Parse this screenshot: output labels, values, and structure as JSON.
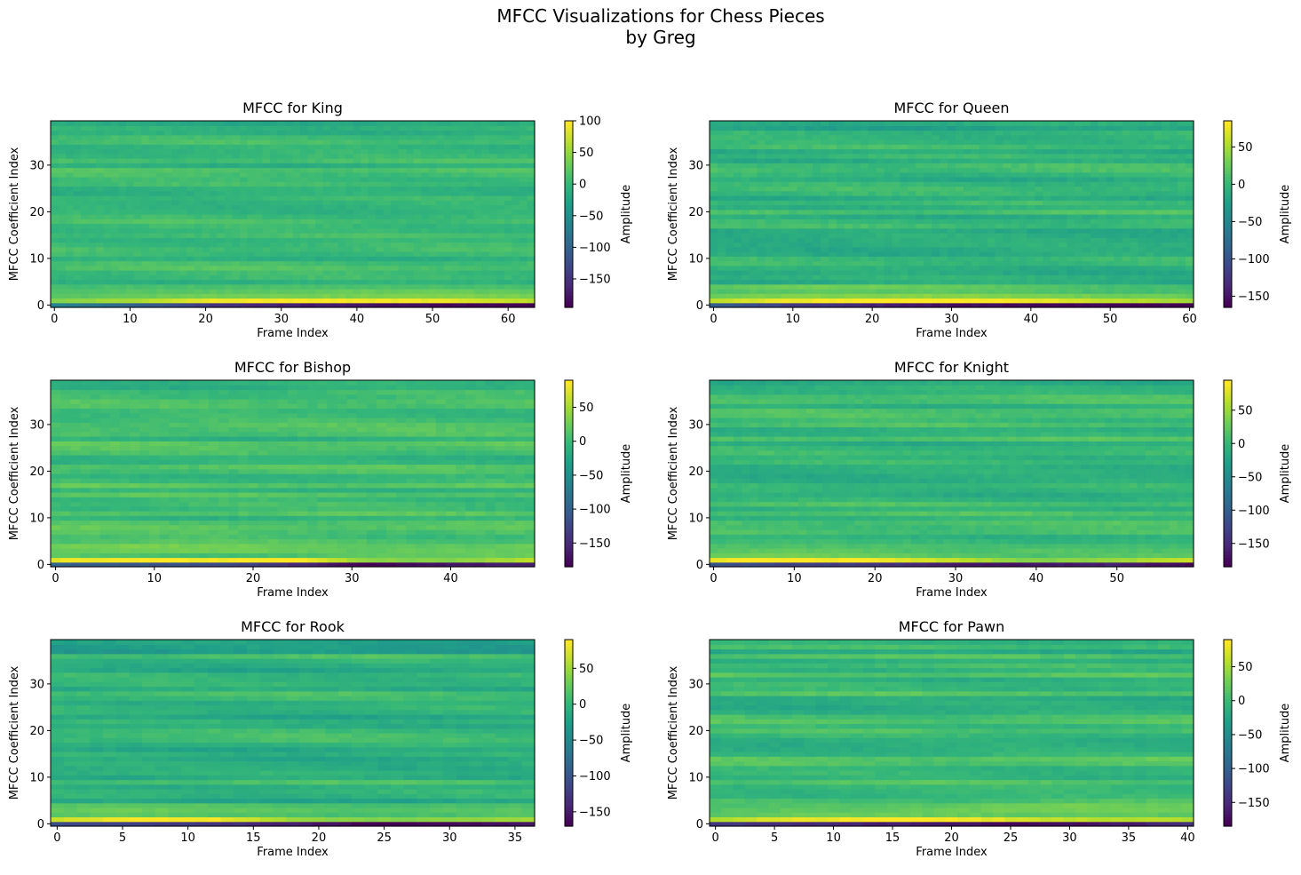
{
  "figure": {
    "suptitle_line1": "MFCC Visualizations for Chess Pieces",
    "suptitle_line2": "by Greg"
  },
  "chart_data": [
    {
      "type": "heatmap",
      "title": "MFCC for King",
      "xlabel": "Frame Index",
      "ylabel": "MFCC Coefficient Index",
      "colorbar_label": "Amplitude",
      "colormap": "viridis",
      "n_frames": 64,
      "n_coefficients": 40,
      "xlim": [
        -0.5,
        63.5
      ],
      "ylim": [
        -0.5,
        39.5
      ],
      "xticks": [
        0,
        10,
        20,
        30,
        40,
        50,
        60
      ],
      "yticks": [
        0,
        10,
        20,
        30
      ],
      "clim": [
        -195,
        100
      ],
      "cbar_ticks": [
        100,
        50,
        0,
        -50,
        -100,
        -150
      ],
      "rows": [
        {
          "coef": 0,
          "values": [
            -60,
            -100,
            -150,
            -170,
            -180,
            -190,
            -195
          ]
        },
        {
          "coef": 1,
          "values": [
            45,
            60,
            95,
            100,
            95,
            90,
            70
          ]
        },
        {
          "coef": 2,
          "values": [
            20,
            30,
            35,
            38,
            40,
            42,
            38
          ]
        },
        {
          "coef": 3,
          "values": [
            15,
            20,
            22,
            25,
            30,
            30,
            25
          ]
        },
        {
          "coef": 4,
          "values": [
            10,
            12,
            14,
            15,
            15,
            14,
            12
          ]
        }
      ],
      "background_range": [
        -30,
        30
      ]
    },
    {
      "type": "heatmap",
      "title": "MFCC for Queen",
      "xlabel": "Frame Index",
      "ylabel": "MFCC Coefficient Index",
      "colorbar_label": "Amplitude",
      "colormap": "viridis",
      "n_frames": 61,
      "n_coefficients": 40,
      "xlim": [
        -0.5,
        60.5
      ],
      "ylim": [
        -0.5,
        39.5
      ],
      "xticks": [
        0,
        10,
        20,
        30,
        40,
        50,
        60
      ],
      "yticks": [
        0,
        10,
        20,
        30
      ],
      "clim": [
        -165,
        85
      ],
      "cbar_ticks": [
        50,
        0,
        -50,
        -100,
        -150
      ],
      "rows": [
        {
          "coef": 0,
          "values": [
            -90,
            -120,
            -140,
            -155,
            -160,
            -160,
            -165
          ]
        },
        {
          "coef": 1,
          "values": [
            60,
            80,
            85,
            85,
            80,
            60,
            50
          ]
        },
        {
          "coef": 2,
          "values": [
            30,
            35,
            40,
            40,
            35,
            30,
            25
          ]
        },
        {
          "coef": 3,
          "values": [
            15,
            20,
            20,
            20,
            15,
            10,
            10
          ]
        },
        {
          "coef": 4,
          "values": [
            20,
            30,
            30,
            25,
            20,
            10,
            10
          ]
        }
      ],
      "background_range": [
        -35,
        25
      ]
    },
    {
      "type": "heatmap",
      "title": "MFCC for Bishop",
      "xlabel": "Frame Index",
      "ylabel": "MFCC Coefficient Index",
      "colorbar_label": "Amplitude",
      "colormap": "viridis",
      "n_frames": 49,
      "n_coefficients": 40,
      "xlim": [
        -0.5,
        48.5
      ],
      "ylim": [
        -0.5,
        39.5
      ],
      "xticks": [
        0,
        10,
        20,
        30,
        40
      ],
      "yticks": [
        0,
        10,
        20,
        30
      ],
      "clim": [
        -185,
        90
      ],
      "cbar_ticks": [
        50,
        0,
        -50,
        -100,
        -150
      ],
      "rows": [
        {
          "coef": 0,
          "values": [
            -100,
            -110,
            -120,
            -150,
            -185,
            -170,
            -160
          ]
        },
        {
          "coef": 1,
          "values": [
            80,
            90,
            85,
            90,
            40,
            35,
            60
          ]
        },
        {
          "coef": 2,
          "values": [
            20,
            10,
            5,
            10,
            20,
            25,
            25
          ]
        },
        {
          "coef": 3,
          "values": [
            25,
            30,
            30,
            25,
            20,
            25,
            25
          ]
        },
        {
          "coef": 4,
          "values": [
            30,
            35,
            30,
            25,
            20,
            20,
            25
          ]
        }
      ],
      "background_range": [
        -35,
        35
      ]
    },
    {
      "type": "heatmap",
      "title": "MFCC for Knight",
      "xlabel": "Frame Index",
      "ylabel": "MFCC Coefficient Index",
      "colorbar_label": "Amplitude",
      "colormap": "viridis",
      "n_frames": 60,
      "n_coefficients": 40,
      "xlim": [
        -0.5,
        59.5
      ],
      "ylim": [
        -0.5,
        39.5
      ],
      "xticks": [
        0,
        10,
        20,
        30,
        40,
        50
      ],
      "yticks": [
        0,
        10,
        20,
        30
      ],
      "clim": [
        -185,
        95
      ],
      "cbar_ticks": [
        50,
        0,
        -50,
        -100,
        -150
      ],
      "rows": [
        {
          "coef": 0,
          "values": [
            -110,
            -130,
            -140,
            -165,
            -170,
            -160,
            -180
          ]
        },
        {
          "coef": 1,
          "values": [
            90,
            95,
            90,
            70,
            40,
            50,
            70
          ]
        },
        {
          "coef": 2,
          "values": [
            30,
            35,
            30,
            20,
            15,
            20,
            25
          ]
        },
        {
          "coef": 3,
          "values": [
            20,
            25,
            20,
            10,
            20,
            15,
            15
          ]
        },
        {
          "coef": 4,
          "values": [
            15,
            15,
            15,
            10,
            10,
            10,
            10
          ]
        }
      ],
      "background_range": [
        -35,
        30
      ]
    },
    {
      "type": "heatmap",
      "title": "MFCC for Rook",
      "xlabel": "Frame Index",
      "ylabel": "MFCC Coefficient Index",
      "colorbar_label": "Amplitude",
      "colormap": "viridis",
      "n_frames": 37,
      "n_coefficients": 40,
      "xlim": [
        -0.5,
        36.5
      ],
      "ylim": [
        -0.5,
        39.5
      ],
      "xticks": [
        0,
        5,
        10,
        15,
        20,
        25,
        30,
        35
      ],
      "yticks": [
        0,
        10,
        20,
        30
      ],
      "clim": [
        -170,
        90
      ],
      "cbar_ticks": [
        50,
        0,
        -50,
        -100,
        -150
      ],
      "rows": [
        {
          "coef": 0,
          "values": [
            -110,
            -120,
            -130,
            -150,
            -170,
            -165,
            -155
          ]
        },
        {
          "coef": 1,
          "values": [
            70,
            90,
            88,
            50,
            40,
            45,
            55
          ]
        },
        {
          "coef": 2,
          "values": [
            20,
            25,
            20,
            15,
            10,
            15,
            20
          ]
        },
        {
          "coef": 3,
          "values": [
            25,
            30,
            25,
            20,
            15,
            20,
            20
          ]
        },
        {
          "coef": 4,
          "values": [
            20,
            25,
            20,
            15,
            10,
            15,
            15
          ]
        }
      ],
      "background_range": [
        -45,
        30
      ]
    },
    {
      "type": "heatmap",
      "title": "MFCC for Pawn",
      "xlabel": "Frame Index",
      "ylabel": "MFCC Coefficient Index",
      "colorbar_label": "Amplitude",
      "colormap": "viridis",
      "n_frames": 41,
      "n_coefficients": 40,
      "xlim": [
        -0.5,
        40.5
      ],
      "ylim": [
        -0.5,
        39.5
      ],
      "xticks": [
        0,
        5,
        10,
        15,
        20,
        25,
        30,
        35,
        40
      ],
      "yticks": [
        0,
        10,
        20,
        30
      ],
      "clim": [
        -185,
        90
      ],
      "cbar_ticks": [
        50,
        0,
        -50,
        -100,
        -150
      ],
      "rows": [
        {
          "coef": 0,
          "values": [
            -140,
            -150,
            -160,
            -170,
            -180,
            -170,
            -150
          ]
        },
        {
          "coef": 1,
          "values": [
            60,
            80,
            90,
            90,
            70,
            60,
            60
          ]
        },
        {
          "coef": 2,
          "values": [
            20,
            25,
            25,
            25,
            20,
            20,
            20
          ]
        },
        {
          "coef": 3,
          "values": [
            15,
            20,
            20,
            25,
            30,
            30,
            25
          ]
        },
        {
          "coef": 4,
          "values": [
            10,
            15,
            15,
            20,
            30,
            30,
            25
          ]
        }
      ],
      "background_range": [
        -45,
        35
      ]
    }
  ]
}
